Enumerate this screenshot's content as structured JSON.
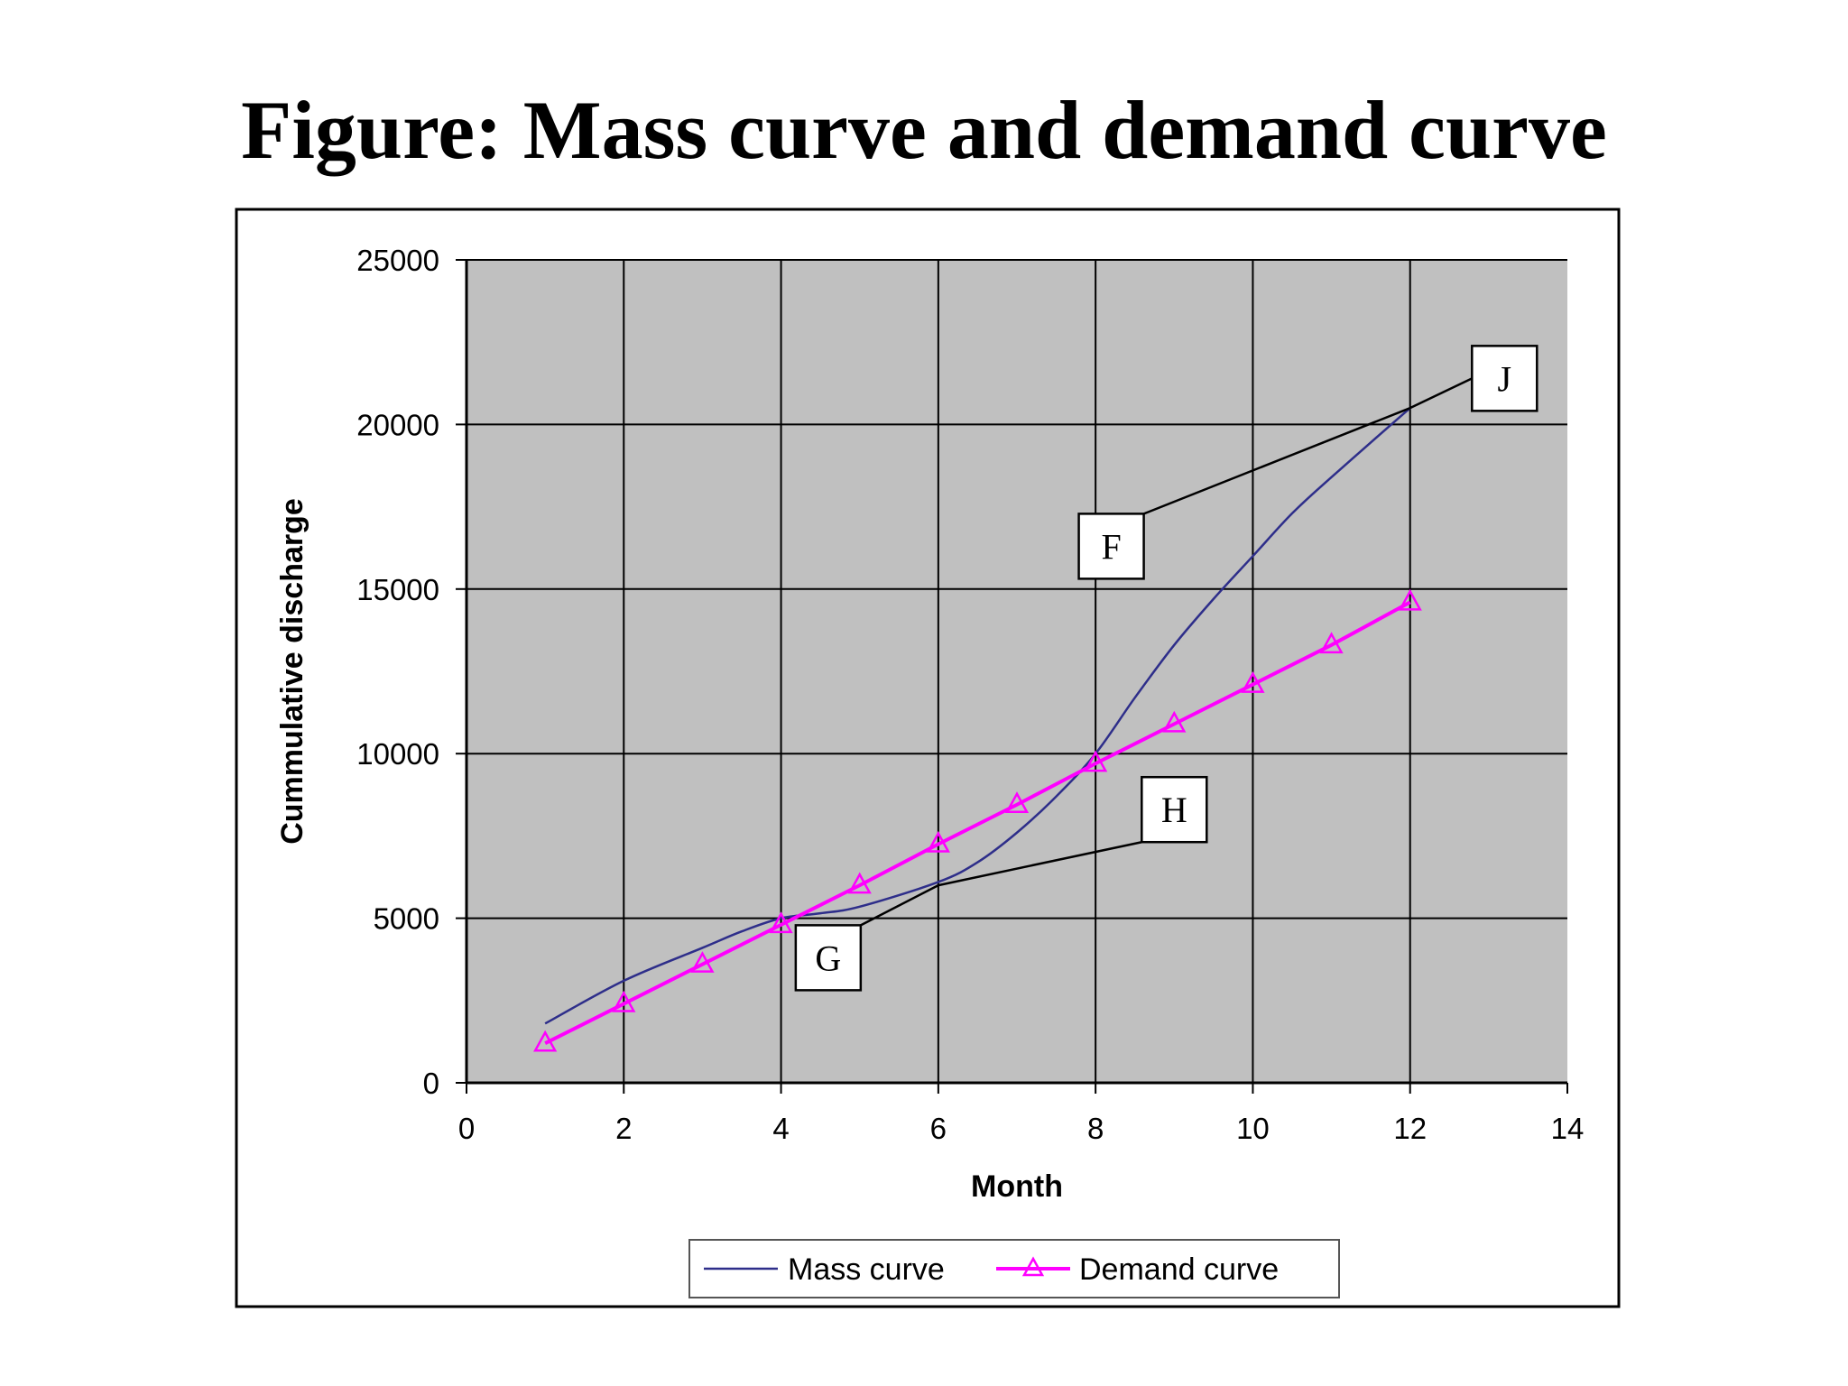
{
  "title": "Figure: Mass curve and demand curve",
  "chart_data": {
    "type": "line",
    "xlabel": "Month",
    "ylabel": "Cummulative discharge",
    "xlim": [
      0,
      14
    ],
    "ylim": [
      0,
      25000
    ],
    "xticks": [
      0,
      2,
      4,
      6,
      8,
      10,
      12,
      14
    ],
    "yticks": [
      0,
      5000,
      10000,
      15000,
      20000,
      25000
    ],
    "grid": true,
    "plot_background": "#c0c0c0",
    "legend_position": "bottom",
    "series": [
      {
        "name": "Mass curve",
        "color": "#2e2e8a",
        "marker": "none",
        "x": [
          1,
          2,
          3,
          3.5,
          4,
          4.5,
          5,
          6,
          6.5,
          7,
          7.5,
          8,
          8.5,
          9,
          9.5,
          10,
          10.5,
          11,
          12
        ],
        "y": [
          1800,
          3100,
          4100,
          4600,
          5000,
          5150,
          5350,
          6100,
          6700,
          7600,
          8700,
          10000,
          11700,
          13300,
          14700,
          16000,
          17300,
          18400,
          20500
        ]
      },
      {
        "name": "Demand curve",
        "color": "#ff00ff",
        "marker": "triangle",
        "x": [
          1,
          2,
          3,
          4,
          5,
          6,
          7,
          8,
          9,
          10,
          11,
          12
        ],
        "y": [
          1200,
          2400,
          3600,
          4800,
          6000,
          7250,
          8450,
          9700,
          10900,
          12100,
          13300,
          14600
        ]
      }
    ],
    "annotations": [
      {
        "label": "J",
        "x": 13.2,
        "y": 21400,
        "points_to_x": 12,
        "points_to_y": 20500
      },
      {
        "label": "F",
        "x": 8.2,
        "y": 16300,
        "points_to_x": 12,
        "points_to_y": 20500
      },
      {
        "label": "H",
        "x": 9,
        "y": 8300,
        "points_to_x": 6,
        "points_to_y": 6000
      },
      {
        "label": "G",
        "x": 4.6,
        "y": 3800,
        "points_to_x": 6,
        "points_to_y": 6000
      }
    ]
  }
}
